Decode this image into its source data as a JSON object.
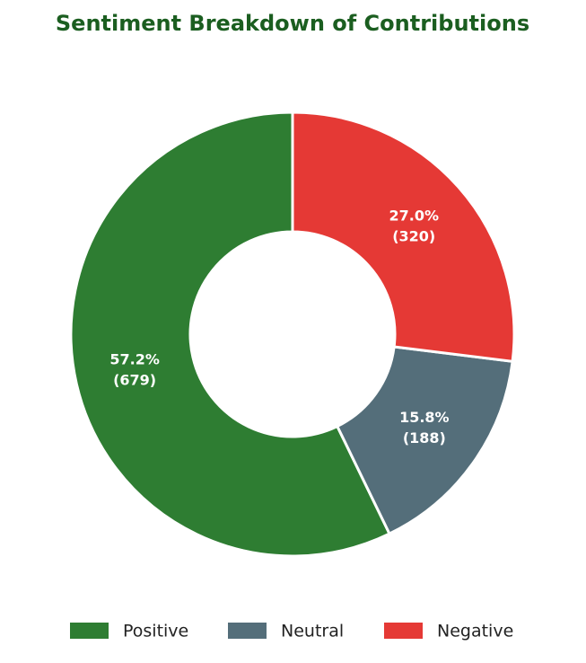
{
  "chart_data": {
    "type": "donut",
    "title": "Sentiment Breakdown of Contributions",
    "categories": [
      "Positive",
      "Neutral",
      "Negative"
    ],
    "values": [
      679,
      188,
      320
    ],
    "value_labels": [
      [
        "57.2%",
        "(679)"
      ],
      [
        "15.8%",
        "(188)"
      ],
      [
        "27.0%",
        "(320)"
      ]
    ],
    "colors": [
      "#2e7d32",
      "#546e7a",
      "#e53935"
    ],
    "direction": "counterclockwise",
    "legend": "bottom"
  }
}
